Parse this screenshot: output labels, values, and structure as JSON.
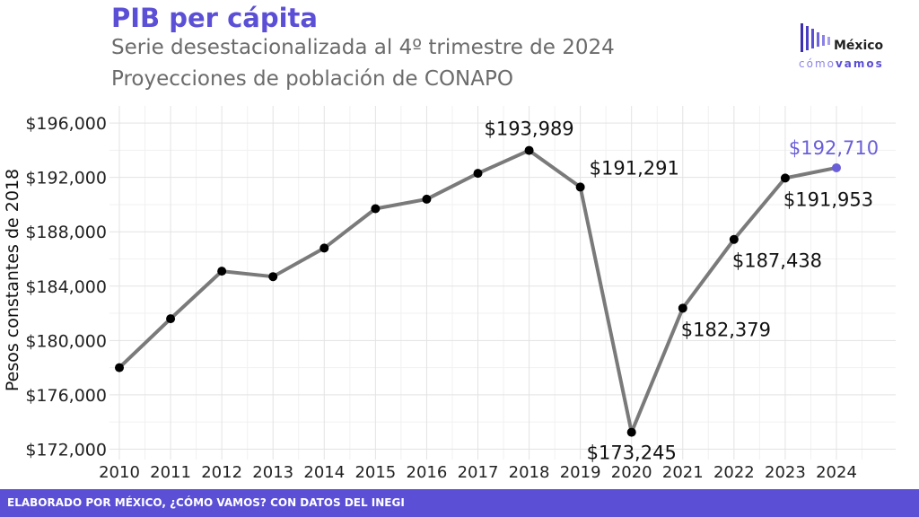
{
  "header": {
    "title": "PIB per cápita",
    "subtitle_1": "Serie desestacionalizada al 4º trimestre de 2024",
    "subtitle_2": "Proyecciones de población de CONAPO"
  },
  "logo": {
    "name": "México",
    "tagline_light": "cómo",
    "tagline_bold": "vamos"
  },
  "footer": {
    "credit": "ELABORADO POR MÉXICO, ¿CÓMO VAMOS? CON DATOS DEL INEGI"
  },
  "colors": {
    "accent": "#5b4fd6",
    "line": "#7a7a7a",
    "point": "#000000",
    "highlight": "#6a5fd8"
  },
  "chart_data": {
    "type": "line",
    "title": "PIB per cápita",
    "xlabel": "",
    "ylabel": "Pesos constantes de 2018",
    "x": [
      2010,
      2011,
      2012,
      2013,
      2014,
      2015,
      2016,
      2017,
      2018,
      2019,
      2020,
      2021,
      2022,
      2023,
      2024
    ],
    "values": [
      178000,
      181600,
      185100,
      184700,
      186800,
      189700,
      190400,
      192300,
      193989,
      191291,
      173245,
      182379,
      187438,
      191953,
      192710
    ],
    "ylim": [
      171500,
      197000
    ],
    "yticks": [
      172000,
      176000,
      180000,
      184000,
      188000,
      192000,
      196000
    ],
    "ytick_labels": [
      "$172,000",
      "$176,000",
      "$180,000",
      "$184,000",
      "$188,000",
      "$192,000",
      "$196,000"
    ],
    "xtick_labels": [
      "2010",
      "2011",
      "2012",
      "2013",
      "2014",
      "2015",
      "2016",
      "2017",
      "2018",
      "2019",
      "2020",
      "2021",
      "2022",
      "2023",
      "2024"
    ],
    "grid": true,
    "annotations": [
      {
        "year": 2018,
        "text": "$193,989",
        "position": "above"
      },
      {
        "year": 2019,
        "text": "$191,291",
        "position": "above-right"
      },
      {
        "year": 2020,
        "text": "$173,245",
        "position": "below"
      },
      {
        "year": 2021,
        "text": "$182,379",
        "position": "below-right"
      },
      {
        "year": 2022,
        "text": "$187,438",
        "position": "below-right"
      },
      {
        "year": 2023,
        "text": "$191,953",
        "position": "below-right"
      },
      {
        "year": 2024,
        "text": "$192,710",
        "position": "above",
        "highlight": true
      }
    ]
  }
}
